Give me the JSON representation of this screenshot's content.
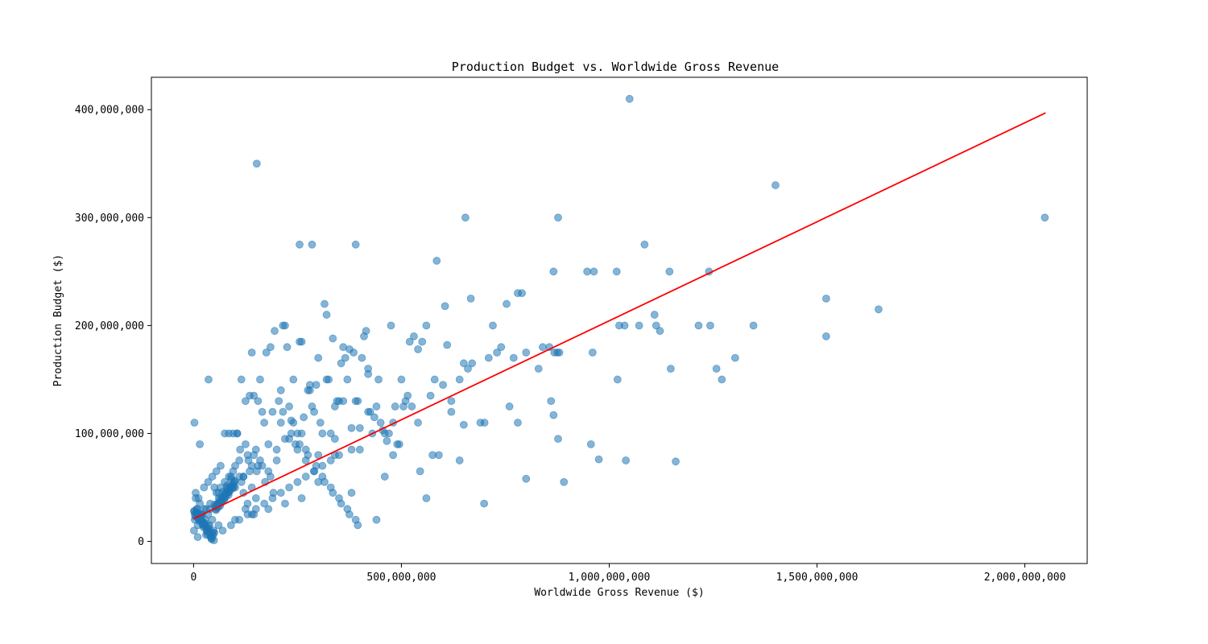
{
  "chart_data": {
    "type": "scatter",
    "title": "Production Budget vs. Worldwide Gross Revenue",
    "xlabel": "Worldwide Gross Revenue ($)",
    "ylabel": "Production Budget ($)",
    "xlim": [
      -101500000,
      2150000000
    ],
    "ylim": [
      -20500000,
      430000000
    ],
    "x_ticks": [
      0,
      500000000,
      1000000000,
      1500000000,
      2000000000
    ],
    "x_tick_labels": [
      "0",
      "500,000,000",
      "1,000,000,000",
      "1,500,000,000",
      "2,000,000,000"
    ],
    "y_ticks": [
      0,
      100000000,
      200000000,
      300000000,
      400000000
    ],
    "y_tick_labels": [
      "0",
      "100,000,000",
      "200,000,000",
      "300,000,000",
      "400,000,000"
    ],
    "grid": false,
    "legend": "none",
    "colors": {
      "points": "#1f77b4",
      "trend_line": "#ff0000",
      "axes": "#000000"
    },
    "point_alpha": 0.55,
    "trend_line": {
      "x": [
        0,
        2050000000
      ],
      "y": [
        21000000,
        397000000
      ]
    },
    "points": {
      "x": [
        1049000000,
        152000000,
        1400000000,
        2048000000,
        654000000,
        877000000,
        1085000000,
        255000000,
        285000000,
        390000000,
        585000000,
        1240000000,
        866000000,
        947000000,
        963000000,
        1018000000,
        1145000000,
        667000000,
        790000000,
        753000000,
        605000000,
        1522000000,
        1648000000,
        1522000000,
        1109000000,
        1024000000,
        1037000000,
        1072000000,
        1113000000,
        1215000000,
        1243000000,
        1347000000,
        1122000000,
        1303000000,
        1148000000,
        1258000000,
        1271000000,
        1020000000,
        960000000,
        875000000,
        856000000,
        868000000,
        877000000,
        956000000,
        975000000,
        1040000000,
        1160000000,
        800000000,
        891000000,
        699000000,
        866000000,
        760000000,
        720000000,
        740000000,
        830000000,
        800000000,
        780000000,
        730000000,
        700000000,
        650000000,
        640000000,
        620000000,
        590000000,
        560000000,
        540000000,
        520000000,
        500000000,
        490000000,
        480000000,
        470000000,
        460000000,
        450000000,
        440000000,
        430000000,
        420000000,
        410000000,
        400000000,
        390000000,
        380000000,
        370000000,
        360000000,
        350000000,
        340000000,
        330000000,
        320000000,
        310000000,
        300000000,
        290000000,
        280000000,
        270000000,
        260000000,
        250000000,
        240000000,
        230000000,
        220000000,
        210000000,
        200000000,
        190000000,
        180000000,
        170000000,
        160000000,
        150000000,
        140000000,
        130000000,
        120000000,
        110000000,
        100000000,
        90000000,
        80000000,
        70000000,
        60000000,
        50000000,
        40000000,
        30000000,
        20000000,
        10000000,
        5000000,
        2000000,
        36000000,
        15000000,
        650000000,
        610000000,
        660000000,
        670000000,
        710000000,
        770000000,
        780000000,
        840000000,
        860000000,
        880000000,
        540000000,
        550000000,
        560000000,
        570000000,
        580000000,
        530000000,
        515000000,
        505000000,
        495000000,
        485000000,
        475000000,
        465000000,
        455000000,
        445000000,
        435000000,
        425000000,
        415000000,
        405000000,
        395000000,
        385000000,
        375000000,
        365000000,
        355000000,
        345000000,
        335000000,
        325000000,
        315000000,
        305000000,
        295000000,
        285000000,
        275000000,
        265000000,
        255000000,
        245000000,
        235000000,
        225000000,
        215000000,
        205000000,
        195000000,
        185000000,
        175000000,
        165000000,
        155000000,
        145000000,
        135000000,
        125000000,
        115000000,
        105000000,
        95000000,
        85000000,
        75000000,
        65000000,
        55000000,
        45000000,
        35000000,
        25000000,
        12000000,
        8000000,
        3000000,
        1000000,
        620000000,
        600000000,
        640000000,
        690000000,
        575000000,
        545000000,
        525000000,
        510000000,
        480000000,
        460000000,
        440000000,
        420000000,
        400000000,
        380000000,
        360000000,
        340000000,
        320000000,
        300000000,
        280000000,
        260000000,
        240000000,
        220000000,
        200000000,
        180000000,
        160000000,
        140000000,
        120000000,
        100000000,
        80000000,
        60000000,
        40000000,
        20000000,
        350000000,
        330000000,
        310000000,
        290000000,
        270000000,
        250000000,
        230000000,
        210000000,
        190000000,
        170000000,
        150000000,
        130000000,
        110000000,
        90000000,
        70000000,
        50000000,
        30000000,
        10000000,
        420000000,
        380000000,
        340000000,
        300000000,
        260000000,
        220000000,
        180000000,
        140000000,
        100000000,
        60000000,
        45000000,
        35000000,
        25000000,
        15000000,
        5000000,
        55000000,
        65000000,
        75000000,
        85000000,
        95000000,
        48000000,
        38000000,
        28000000,
        18000000,
        8000000,
        58000000,
        68000000,
        78000000,
        88000000,
        98000000,
        42000000,
        32000000,
        22000000,
        12000000,
        2000000,
        52000000,
        62000000,
        72000000,
        82000000,
        92000000,
        46000000,
        36000000,
        26000000,
        16000000,
        6000000,
        56000000,
        66000000,
        76000000,
        86000000,
        96000000,
        44000000,
        34000000,
        24000000,
        14000000,
        4000000,
        54000000,
        64000000,
        74000000,
        84000000,
        94000000,
        47000000,
        37000000,
        27000000,
        17000000,
        7000000,
        57000000,
        67000000,
        77000000,
        87000000,
        97000000,
        43000000,
        33000000,
        23000000,
        13000000,
        3000000,
        53000000,
        63000000,
        73000000,
        83000000,
        93000000,
        41000000,
        31000000,
        21000000,
        11000000,
        1000000,
        51000000,
        61000000,
        71000000,
        81000000,
        91000000,
        49000000,
        39000000,
        29000000,
        19000000,
        9000000,
        59000000,
        69000000,
        79000000,
        89000000,
        99000000,
        110000000,
        120000000,
        130000000,
        140000000,
        150000000,
        115000000,
        125000000,
        135000000,
        145000000,
        155000000,
        105000000,
        125000000,
        145000000,
        165000000,
        185000000,
        112000000,
        132000000,
        152000000,
        172000000,
        192000000,
        210000000,
        230000000,
        250000000,
        270000000,
        290000000,
        215000000,
        235000000,
        255000000,
        275000000,
        295000000,
        310000000,
        330000000,
        350000000,
        370000000,
        390000000,
        315000000,
        335000000,
        355000000,
        375000000,
        395000000
      ],
      "y": [
        410000000,
        350000000,
        330000000,
        300000000,
        300000000,
        300000000,
        275000000,
        275000000,
        275000000,
        275000000,
        260000000,
        250000000,
        250000000,
        250000000,
        250000000,
        250000000,
        250000000,
        225000000,
        230000000,
        220000000,
        218000000,
        225000000,
        215000000,
        190000000,
        210000000,
        200000000,
        200000000,
        200000000,
        200000000,
        200000000,
        200000000,
        200000000,
        195000000,
        170000000,
        160000000,
        160000000,
        150000000,
        150000000,
        175000000,
        175000000,
        180000000,
        175000000,
        95000000,
        90000000,
        76000000,
        75000000,
        74000000,
        58000000,
        55000000,
        35000000,
        117000000,
        125000000,
        200000000,
        180000000,
        160000000,
        175000000,
        110000000,
        175000000,
        110000000,
        108000000,
        75000000,
        120000000,
        80000000,
        40000000,
        110000000,
        185000000,
        150000000,
        90000000,
        80000000,
        100000000,
        60000000,
        110000000,
        20000000,
        100000000,
        160000000,
        190000000,
        85000000,
        130000000,
        45000000,
        150000000,
        180000000,
        130000000,
        95000000,
        100000000,
        150000000,
        100000000,
        80000000,
        120000000,
        140000000,
        85000000,
        185000000,
        100000000,
        150000000,
        125000000,
        200000000,
        140000000,
        75000000,
        120000000,
        90000000,
        110000000,
        150000000,
        85000000,
        175000000,
        80000000,
        60000000,
        75000000,
        70000000,
        60000000,
        50000000,
        40000000,
        45000000,
        50000000,
        35000000,
        30000000,
        25000000,
        15000000,
        45000000,
        110000000,
        150000000,
        90000000,
        165000000,
        182000000,
        160000000,
        165000000,
        170000000,
        170000000,
        230000000,
        180000000,
        130000000,
        175000000,
        178000000,
        185000000,
        200000000,
        135000000,
        150000000,
        190000000,
        135000000,
        125000000,
        90000000,
        125000000,
        200000000,
        93000000,
        103000000,
        150000000,
        115000000,
        120000000,
        195000000,
        170000000,
        130000000,
        175000000,
        178000000,
        170000000,
        165000000,
        130000000,
        188000000,
        150000000,
        220000000,
        110000000,
        145000000,
        125000000,
        140000000,
        115000000,
        185000000,
        90000000,
        112000000,
        180000000,
        200000000,
        130000000,
        195000000,
        180000000,
        175000000,
        120000000,
        130000000,
        135000000,
        135000000,
        130000000,
        150000000,
        100000000,
        100000000,
        100000000,
        100000000,
        70000000,
        65000000,
        60000000,
        55000000,
        50000000,
        40000000,
        30000000,
        20000000,
        10000000,
        130000000,
        145000000,
        150000000,
        110000000,
        80000000,
        65000000,
        125000000,
        130000000,
        110000000,
        100000000,
        125000000,
        155000000,
        105000000,
        85000000,
        130000000,
        125000000,
        210000000,
        170000000,
        145000000,
        100000000,
        110000000,
        95000000,
        85000000,
        65000000,
        75000000,
        70000000,
        60000000,
        50000000,
        45000000,
        35000000,
        30000000,
        25000000,
        80000000,
        75000000,
        70000000,
        65000000,
        60000000,
        55000000,
        50000000,
        45000000,
        40000000,
        35000000,
        30000000,
        25000000,
        20000000,
        15000000,
        10000000,
        8000000,
        6000000,
        4000000,
        120000000,
        105000000,
        80000000,
        55000000,
        40000000,
        35000000,
        30000000,
        25000000,
        20000000,
        15000000,
        20000000,
        25000000,
        30000000,
        35000000,
        40000000,
        45000000,
        50000000,
        55000000,
        60000000,
        65000000,
        10000000,
        15000000,
        20000000,
        25000000,
        30000000,
        35000000,
        40000000,
        45000000,
        50000000,
        55000000,
        5000000,
        12000000,
        18000000,
        22000000,
        28000000,
        32000000,
        38000000,
        42000000,
        48000000,
        52000000,
        8000000,
        14000000,
        16000000,
        24000000,
        26000000,
        34000000,
        36000000,
        44000000,
        46000000,
        54000000,
        3000000,
        9000000,
        13000000,
        19000000,
        23000000,
        29000000,
        33000000,
        39000000,
        43000000,
        49000000,
        6000000,
        11000000,
        17000000,
        21000000,
        27000000,
        31000000,
        37000000,
        41000000,
        47000000,
        51000000,
        2000000,
        7000000,
        15000000,
        20000000,
        25000000,
        30000000,
        35000000,
        40000000,
        45000000,
        50000000,
        4000000,
        10000000,
        16000000,
        22000000,
        28000000,
        34000000,
        40000000,
        46000000,
        52000000,
        58000000,
        1000000,
        8000000,
        14000000,
        20000000,
        26000000,
        32000000,
        38000000,
        44000000,
        50000000,
        56000000,
        60000000,
        45000000,
        35000000,
        50000000,
        40000000,
        55000000,
        30000000,
        65000000,
        25000000,
        70000000,
        100000000,
        90000000,
        80000000,
        70000000,
        60000000,
        85000000,
        75000000,
        65000000,
        55000000,
        45000000,
        110000000,
        95000000,
        85000000,
        75000000,
        65000000,
        120000000,
        100000000,
        90000000,
        80000000,
        70000000,
        60000000,
        50000000,
        40000000,
        30000000,
        20000000,
        55000000,
        45000000,
        35000000,
        25000000,
        15000000
      ]
    }
  }
}
